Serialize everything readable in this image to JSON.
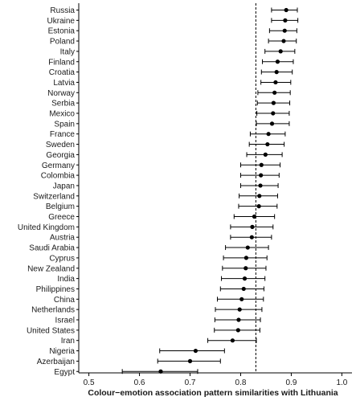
{
  "chart_data": {
    "type": "scatter",
    "xlabel": "Colour−emotion association pattern similarities with Lithuania",
    "xlim": [
      0.48,
      1.02
    ],
    "xticks": [
      0.5,
      0.6,
      0.7,
      0.8,
      0.9,
      1.0
    ],
    "xtick_labels": [
      "0.5",
      "0.6",
      "0.7",
      "0.8",
      "0.9",
      "1.0"
    ],
    "reference_line": 0.83,
    "categories": [
      "Russia",
      "Ukraine",
      "Estonia",
      "Poland",
      "Italy",
      "Finland",
      "Croatia",
      "Latvia",
      "Norway",
      "Serbia",
      "Mexico",
      "Spain",
      "France",
      "Sweden",
      "Georgia",
      "Germany",
      "Colombia",
      "Japan",
      "Switzerland",
      "Belgium",
      "Greece",
      "United Kingdom",
      "Austria",
      "Saudi Arabia",
      "Cyprus",
      "New Zealand",
      "India",
      "Philippines",
      "China",
      "Netherlands",
      "Israel",
      "United States",
      "Iran",
      "Nigeria",
      "Azerbaijan",
      "Egypt"
    ],
    "values": [
      0.89,
      0.888,
      0.887,
      0.885,
      0.879,
      0.873,
      0.871,
      0.869,
      0.867,
      0.865,
      0.864,
      0.862,
      0.855,
      0.853,
      0.849,
      0.841,
      0.84,
      0.839,
      0.837,
      0.836,
      0.827,
      0.823,
      0.822,
      0.814,
      0.811,
      0.81,
      0.808,
      0.806,
      0.802,
      0.798,
      0.796,
      0.795,
      0.784,
      0.711,
      0.7,
      0.642
    ],
    "lower": [
      0.861,
      0.861,
      0.857,
      0.855,
      0.848,
      0.843,
      0.841,
      0.84,
      0.834,
      0.833,
      0.832,
      0.831,
      0.819,
      0.817,
      0.812,
      0.8,
      0.8,
      0.8,
      0.797,
      0.796,
      0.787,
      0.78,
      0.78,
      0.77,
      0.766,
      0.764,
      0.762,
      0.76,
      0.754,
      0.75,
      0.749,
      0.748,
      0.735,
      0.64,
      0.636,
      0.566
    ],
    "upper": [
      0.912,
      0.913,
      0.911,
      0.91,
      0.907,
      0.904,
      0.902,
      0.899,
      0.898,
      0.897,
      0.896,
      0.896,
      0.888,
      0.886,
      0.882,
      0.878,
      0.876,
      0.874,
      0.873,
      0.872,
      0.867,
      0.864,
      0.861,
      0.855,
      0.852,
      0.85,
      0.848,
      0.846,
      0.845,
      0.842,
      0.839,
      0.838,
      0.831,
      0.768,
      0.76,
      0.715
    ],
    "grid": false
  }
}
